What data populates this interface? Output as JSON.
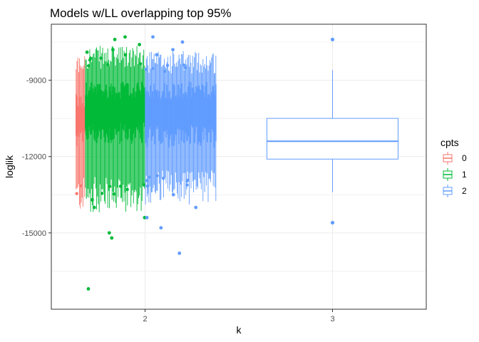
{
  "chart_data": {
    "type": "boxplot",
    "title": "Models w/LL overlapping top 95%",
    "xlabel": "k",
    "ylabel": "loglik",
    "x_ticks": [
      "2",
      "3"
    ],
    "y_ticks": [
      "-9000",
      "-12000",
      "-15000"
    ],
    "ylim": [
      -18000,
      -6800
    ],
    "grid": true,
    "legend": {
      "title": "cpts",
      "position": "right",
      "entries": [
        {
          "label": "0",
          "color": "#F8766D"
        },
        {
          "label": "1",
          "color": "#00BA38"
        },
        {
          "label": "2",
          "color": "#619CFF"
        }
      ]
    },
    "k2_dense_bands": [
      {
        "cpts": "0",
        "color": "#F8766D",
        "x_range": [
          1.63,
          1.68
        ],
        "whisker_low": -13500,
        "whisker_high": -8400,
        "q1": -11300,
        "q3": -9900,
        "outliers_high": [],
        "outliers_low": []
      },
      {
        "cpts": "1",
        "color": "#00BA38",
        "x_range": [
          1.68,
          2.0
        ],
        "whisker_low": -13500,
        "whisker_high": -8100,
        "q1": -11100,
        "q3": -9400,
        "outliers_high": [
          -7300,
          -7400,
          -7600,
          -7800,
          -7900,
          -8000
        ],
        "outliers_low": [
          -13700,
          -14000,
          -14400,
          -15000,
          -15200,
          -17200
        ]
      },
      {
        "cpts": "2",
        "color": "#619CFF",
        "x_range": [
          2.0,
          2.38
        ],
        "whisker_low": -13200,
        "whisker_high": -8300,
        "q1": -11200,
        "q3": -9400,
        "outliers_high": [
          -7300,
          -7500,
          -7800,
          -8000
        ],
        "outliers_low": [
          -13500,
          -14000,
          -14400,
          -14800,
          -15800
        ]
      }
    ],
    "k3_box": {
      "cpts": "2",
      "color": "#619CFF",
      "median": -11400,
      "q1": -12100,
      "q3": -10500,
      "whisker_low": -13400,
      "whisker_high": -8600,
      "outliers": [
        -7400,
        -14600
      ]
    }
  }
}
